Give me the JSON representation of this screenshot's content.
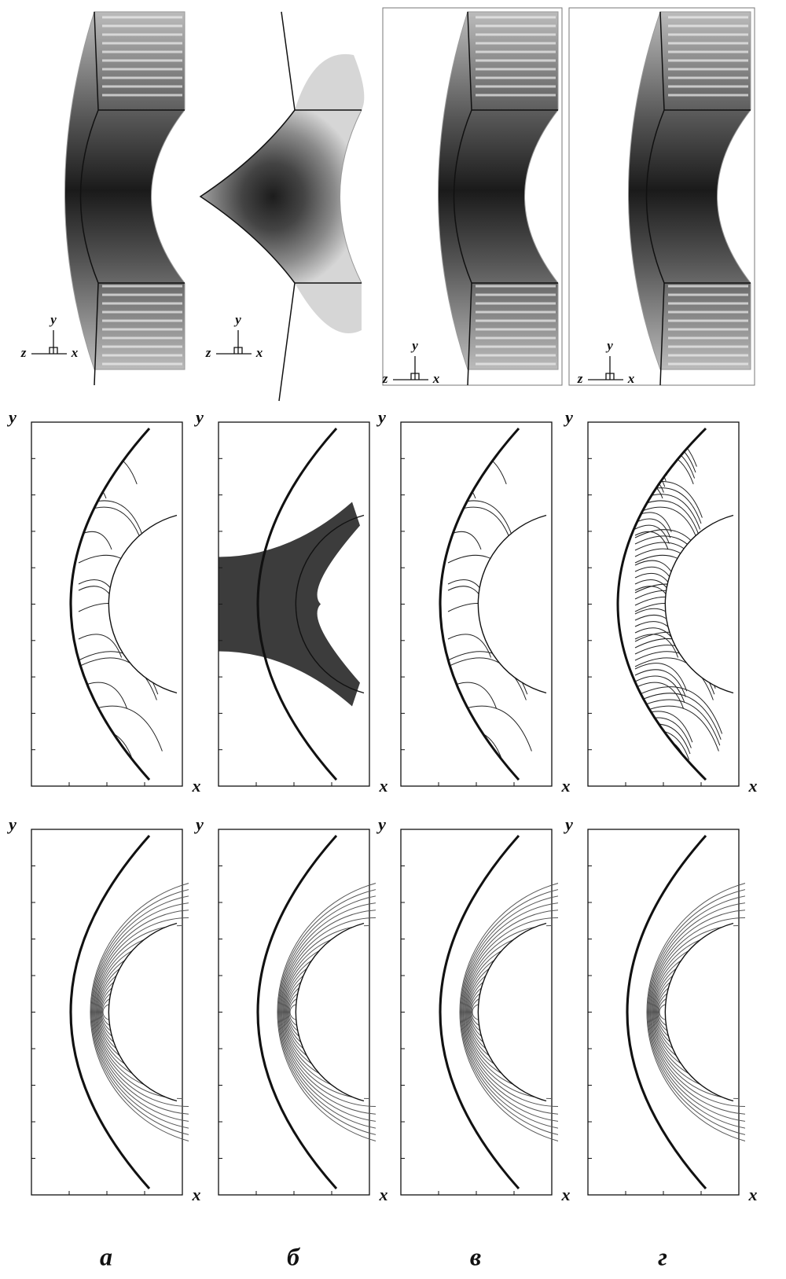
{
  "panels": [
    {
      "label": "а",
      "triad": {
        "z": "z",
        "y": "y",
        "x": "x"
      },
      "streak_axes": {
        "y": "y",
        "x": "x"
      },
      "streamline_axes": {
        "y": "y",
        "x": "x"
      }
    },
    {
      "label": "б",
      "triad": {
        "z": "z",
        "y": "y",
        "x": "x"
      },
      "streak_axes": {
        "y": "y",
        "x": "x"
      },
      "streamline_axes": {
        "y": "y",
        "x": "x"
      }
    },
    {
      "label": "в",
      "triad": {
        "z": "z",
        "y": "y",
        "x": "x"
      },
      "streak_axes": {
        "y": "y",
        "x": "x"
      },
      "streamline_axes": {
        "y": "y",
        "x": "x"
      }
    },
    {
      "label": "г",
      "triad": {
        "z": "z",
        "y": "y",
        "x": "x"
      },
      "streak_axes": {
        "y": "y",
        "x": "x"
      },
      "streamline_axes": {
        "y": "y",
        "x": "x"
      }
    }
  ]
}
